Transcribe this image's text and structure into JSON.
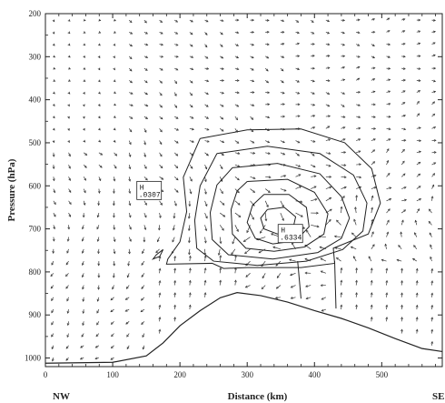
{
  "chart_data": {
    "type": "cross-section",
    "xlabel": "Distance (km)",
    "ylabel": "Pressure (hPa)",
    "xlim": [
      0,
      590
    ],
    "ylim": [
      200,
      1020
    ],
    "y_inverted": true,
    "x_ticks": [
      0,
      100,
      200,
      300,
      400,
      500
    ],
    "x_tick_labels": [
      "0",
      "100",
      "200",
      "300",
      "400",
      "500"
    ],
    "y_ticks": [
      200,
      300,
      400,
      500,
      600,
      700,
      800,
      900,
      1000
    ],
    "y_tick_labels": [
      "200",
      "300",
      "400",
      "500",
      "600",
      "700",
      "800",
      "900",
      "1000"
    ],
    "direction_labels": {
      "left": "NW",
      "right": "SE"
    },
    "terrain": {
      "x": [
        0,
        100,
        150,
        175,
        200,
        230,
        260,
        285,
        320,
        360,
        400,
        440,
        480,
        520,
        560,
        590
      ],
      "p": [
        1012,
        1010,
        995,
        965,
        925,
        890,
        860,
        848,
        855,
        870,
        890,
        908,
        930,
        955,
        978,
        985
      ]
    },
    "annotations": [
      {
        "symbol": "H",
        "value": ".0307",
        "x": 140,
        "p": 615
      },
      {
        "symbol": "H",
        "value": ".6334",
        "x": 350,
        "p": 715
      }
    ],
    "contours": [
      [
        [
          330,
          655
        ],
        [
          355,
          650
        ],
        [
          372,
          672
        ],
        [
          368,
          700
        ],
        [
          345,
          712
        ],
        [
          325,
          700
        ],
        [
          320,
          675
        ],
        [
          330,
          655
        ]
      ],
      [
        [
          325,
          620
        ],
        [
          362,
          620
        ],
        [
          388,
          650
        ],
        [
          392,
          695
        ],
        [
          372,
          728
        ],
        [
          338,
          735
        ],
        [
          312,
          722
        ],
        [
          300,
          685
        ],
        [
          308,
          645
        ],
        [
          325,
          620
        ]
      ],
      [
        [
          300,
          590
        ],
        [
          360,
          585
        ],
        [
          400,
          615
        ],
        [
          420,
          665
        ],
        [
          414,
          712
        ],
        [
          385,
          742
        ],
        [
          340,
          752
        ],
        [
          298,
          745
        ],
        [
          278,
          712
        ],
        [
          276,
          655
        ],
        [
          285,
          612
        ],
        [
          300,
          590
        ]
      ],
      [
        [
          278,
          558
        ],
        [
          345,
          548
        ],
        [
          408,
          572
        ],
        [
          440,
          625
        ],
        [
          452,
          675
        ],
        [
          440,
          722
        ],
        [
          405,
          755
        ],
        [
          338,
          770
        ],
        [
          272,
          760
        ],
        [
          248,
          725
        ],
        [
          245,
          662
        ],
        [
          255,
          598
        ],
        [
          278,
          558
        ]
      ],
      [
        [
          255,
          525
        ],
        [
          330,
          508
        ],
        [
          408,
          525
        ],
        [
          458,
          575
        ],
        [
          478,
          640
        ],
        [
          472,
          705
        ],
        [
          442,
          748
        ],
        [
          388,
          775
        ],
        [
          315,
          785
        ],
        [
          250,
          775
        ],
        [
          225,
          745
        ],
        [
          222,
          680
        ],
        [
          230,
          600
        ],
        [
          255,
          525
        ]
      ],
      [
        [
          230,
          490
        ],
        [
          300,
          470
        ],
        [
          380,
          468
        ],
        [
          445,
          500
        ],
        [
          485,
          560
        ],
        [
          498,
          640
        ],
        [
          480,
          712
        ],
        [
          428,
          745
        ],
        [
          430,
          780
        ],
        [
          380,
          790
        ],
        [
          300,
          790
        ],
        [
          265,
          792
        ],
        [
          248,
          780
        ],
        [
          180,
          782
        ],
        [
          182,
          770
        ],
        [
          200,
          730
        ],
        [
          210,
          660
        ],
        [
          205,
          580
        ],
        [
          230,
          490
        ]
      ]
    ],
    "contour_extras": [
      [
        [
          375,
          775
        ],
        [
          380,
          862
        ]
      ],
      [
        [
          430,
          775
        ],
        [
          432,
          885
        ]
      ],
      [
        [
          175,
          748
        ],
        [
          165,
          760
        ],
        [
          160,
          770
        ],
        [
          170,
          764
        ],
        [
          175,
          748
        ]
      ]
    ],
    "wind_field": "vector arrows (tangential/vertical circulation)",
    "grid": false,
    "legend": "none"
  }
}
